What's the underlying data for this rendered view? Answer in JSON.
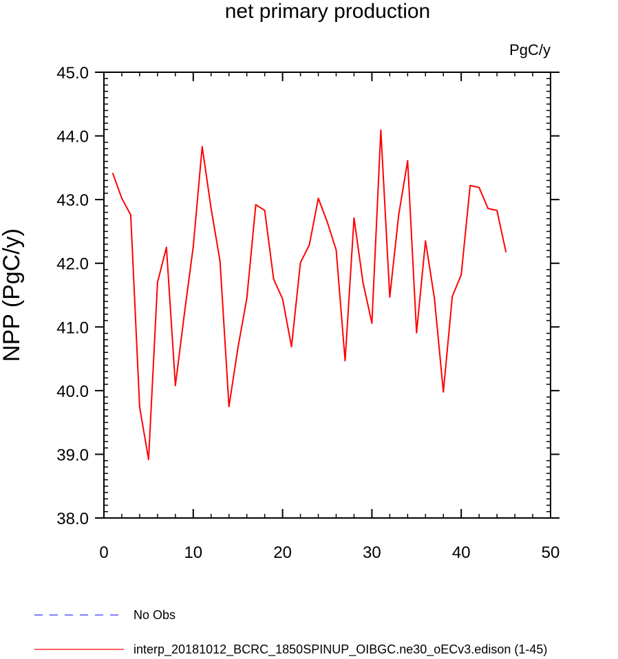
{
  "chart_data": {
    "type": "line",
    "title": "net primary production",
    "units": "PgC/y",
    "ylabel": "NPP  (PgC/y)",
    "xlabel": "",
    "xlim": [
      0,
      50
    ],
    "ylim": [
      38.0,
      45.0
    ],
    "x_ticks": [
      0,
      10,
      20,
      30,
      40,
      50
    ],
    "x_tick_labels": [
      "0",
      "10",
      "20",
      "30",
      "40",
      "50"
    ],
    "y_ticks": [
      38.0,
      39.0,
      40.0,
      41.0,
      42.0,
      43.0,
      44.0,
      45.0
    ],
    "y_tick_labels": [
      "38.0",
      "39.0",
      "40.0",
      "41.0",
      "42.0",
      "43.0",
      "44.0",
      "45.0"
    ],
    "grid": false,
    "legend_placement": "bottom-left",
    "series": [
      {
        "name": "interp_20181012_BCRC_1850SPINUP_OIBGC.ne30_oECv3.edison (1-45)",
        "color": "#ff0000",
        "dash": "solid",
        "x": [
          1,
          2,
          3,
          4,
          5,
          6,
          7,
          8,
          9,
          10,
          11,
          12,
          13,
          14,
          15,
          16,
          17,
          18,
          19,
          20,
          21,
          22,
          23,
          24,
          25,
          26,
          27,
          28,
          29,
          30,
          31,
          32,
          33,
          34,
          35,
          36,
          37,
          38,
          39,
          40,
          41,
          42,
          43,
          44,
          45
        ],
        "values": [
          43.41,
          43.02,
          42.76,
          39.74,
          38.92,
          41.7,
          42.25,
          40.08,
          41.2,
          42.26,
          43.83,
          42.86,
          42.03,
          39.75,
          40.67,
          41.45,
          42.92,
          42.83,
          41.75,
          41.44,
          40.69,
          42.01,
          42.29,
          43.02,
          42.65,
          42.21,
          40.47,
          42.71,
          41.7,
          41.06,
          44.09,
          41.47,
          42.76,
          43.61,
          40.91,
          42.35,
          41.45,
          39.98,
          41.48,
          41.82,
          43.22,
          43.19,
          42.86,
          42.83,
          42.18
        ]
      }
    ],
    "legend": [
      {
        "label": "No Obs",
        "color": "#3333ff",
        "dash": "dashed"
      },
      {
        "label": "interp_20181012_BCRC_1850SPINUP_OIBGC.ne30_oECv3.edison (1-45)",
        "color": "#ff0000",
        "dash": "solid"
      }
    ]
  }
}
